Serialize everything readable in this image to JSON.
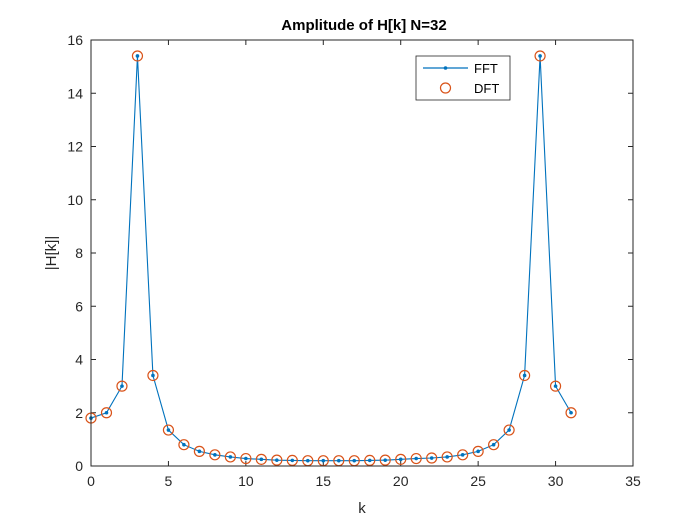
{
  "chart_data": {
    "type": "line",
    "title": "Amplitude of H[k] N=32",
    "xlabel": "k",
    "ylabel": "|H[k]|",
    "xlim": [
      0,
      35
    ],
    "ylim": [
      0,
      16
    ],
    "xticks": [
      "0",
      "5",
      "10",
      "15",
      "20",
      "25",
      "30",
      "35"
    ],
    "yticks": [
      "0",
      "2",
      "4",
      "6",
      "8",
      "10",
      "12",
      "14",
      "16"
    ],
    "grid": false,
    "legend_position": "top-right",
    "x": [
      0,
      1,
      2,
      3,
      4,
      5,
      6,
      7,
      8,
      9,
      10,
      11,
      12,
      13,
      14,
      15,
      16,
      17,
      18,
      19,
      20,
      21,
      22,
      23,
      24,
      25,
      26,
      27,
      28,
      29,
      30,
      31
    ],
    "series": [
      {
        "name": "FFT",
        "style": "line-with-dots",
        "color": "#0072BD",
        "values": [
          1.8,
          2.0,
          3.0,
          15.4,
          3.4,
          1.35,
          0.8,
          0.55,
          0.42,
          0.34,
          0.28,
          0.25,
          0.22,
          0.21,
          0.2,
          0.2,
          0.2,
          0.2,
          0.21,
          0.22,
          0.25,
          0.28,
          0.3,
          0.34,
          0.42,
          0.55,
          0.8,
          1.35,
          3.4,
          15.4,
          3.0,
          2.0
        ]
      },
      {
        "name": "DFT",
        "style": "open-circles",
        "color": "#D95319",
        "values": [
          1.8,
          2.0,
          3.0,
          15.4,
          3.4,
          1.35,
          0.8,
          0.55,
          0.42,
          0.34,
          0.28,
          0.25,
          0.22,
          0.21,
          0.2,
          0.2,
          0.2,
          0.2,
          0.21,
          0.22,
          0.25,
          0.28,
          0.3,
          0.34,
          0.42,
          0.55,
          0.8,
          1.35,
          3.4,
          15.4,
          3.0,
          2.0
        ]
      }
    ]
  }
}
